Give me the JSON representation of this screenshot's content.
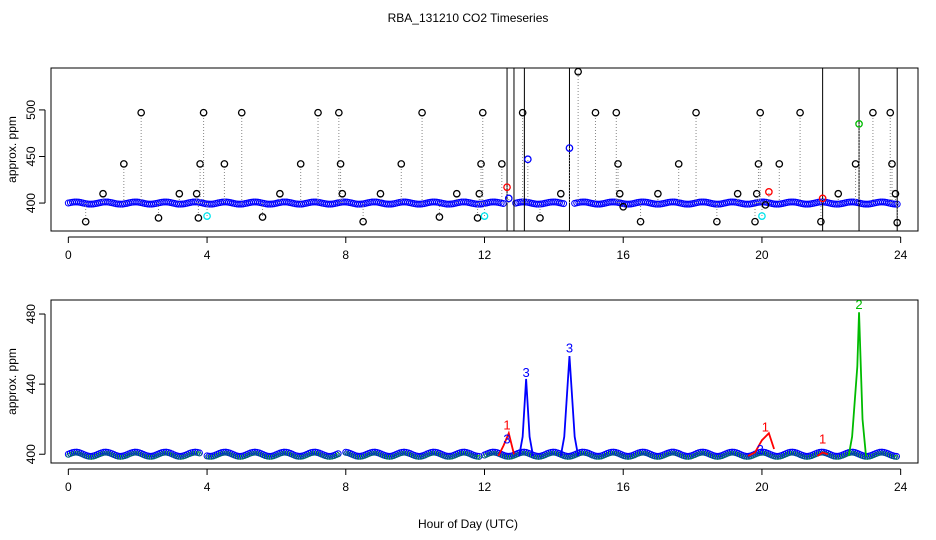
{
  "figure": {
    "title": "RBA_131210  CO2 Timeseries",
    "xlabel": "Hour of Day (UTC)"
  },
  "colors": {
    "black": "#000000",
    "blue": "#0000ff",
    "cyan": "#00e5ee",
    "red": "#ff0000",
    "green": "#00bb00",
    "grey": "#888888"
  },
  "chart_data": [
    {
      "type": "scatter",
      "panel": "top",
      "ylabel": "approx. ppm",
      "xlim": [
        -0.5,
        24.5
      ],
      "ylim": [
        370,
        545
      ],
      "x_ticks": [
        0,
        4,
        8,
        12,
        16,
        20,
        24
      ],
      "y_ticks": [
        400,
        450,
        500
      ],
      "baseline_segments": [
        [
          0,
          12.6
        ],
        [
          12.9,
          14.3
        ],
        [
          14.6,
          23.9
        ]
      ],
      "baseline_value": 400,
      "spike_points": [
        {
          "x": 0.5,
          "y": 380,
          "c": "black"
        },
        {
          "x": 1.0,
          "y": 410,
          "c": "black"
        },
        {
          "x": 1.6,
          "y": 442,
          "c": "black"
        },
        {
          "x": 2.1,
          "y": 497,
          "c": "black"
        },
        {
          "x": 2.6,
          "y": 384,
          "c": "black"
        },
        {
          "x": 3.2,
          "y": 410,
          "c": "black"
        },
        {
          "x": 3.7,
          "y": 410,
          "c": "black"
        },
        {
          "x": 3.75,
          "y": 384,
          "c": "black"
        },
        {
          "x": 3.8,
          "y": 442,
          "c": "black"
        },
        {
          "x": 3.9,
          "y": 497,
          "c": "black"
        },
        {
          "x": 4.0,
          "y": 386,
          "c": "cyan"
        },
        {
          "x": 4.5,
          "y": 442,
          "c": "black"
        },
        {
          "x": 5.0,
          "y": 497,
          "c": "black"
        },
        {
          "x": 5.6,
          "y": 385,
          "c": "black"
        },
        {
          "x": 6.1,
          "y": 410,
          "c": "black"
        },
        {
          "x": 6.7,
          "y": 442,
          "c": "black"
        },
        {
          "x": 7.2,
          "y": 497,
          "c": "black"
        },
        {
          "x": 7.8,
          "y": 497,
          "c": "black"
        },
        {
          "x": 7.85,
          "y": 442,
          "c": "black"
        },
        {
          "x": 7.9,
          "y": 410,
          "c": "black"
        },
        {
          "x": 8.5,
          "y": 380,
          "c": "black"
        },
        {
          "x": 9.0,
          "y": 410,
          "c": "black"
        },
        {
          "x": 9.6,
          "y": 442,
          "c": "black"
        },
        {
          "x": 10.2,
          "y": 497,
          "c": "black"
        },
        {
          "x": 10.7,
          "y": 385,
          "c": "black"
        },
        {
          "x": 11.2,
          "y": 410,
          "c": "black"
        },
        {
          "x": 11.8,
          "y": 384,
          "c": "black"
        },
        {
          "x": 11.85,
          "y": 410,
          "c": "black"
        },
        {
          "x": 11.9,
          "y": 442,
          "c": "black"
        },
        {
          "x": 11.95,
          "y": 497,
          "c": "black"
        },
        {
          "x": 12.0,
          "y": 386,
          "c": "cyan"
        },
        {
          "x": 12.5,
          "y": 442,
          "c": "black"
        },
        {
          "x": 12.65,
          "y": 417,
          "c": "red"
        },
        {
          "x": 12.7,
          "y": 405,
          "c": "blue"
        },
        {
          "x": 13.1,
          "y": 497,
          "c": "black"
        },
        {
          "x": 13.25,
          "y": 447,
          "c": "blue"
        },
        {
          "x": 13.6,
          "y": 384,
          "c": "black"
        },
        {
          "x": 14.2,
          "y": 410,
          "c": "black"
        },
        {
          "x": 14.45,
          "y": 459,
          "c": "blue"
        },
        {
          "x": 14.7,
          "y": 541,
          "c": "black"
        },
        {
          "x": 15.2,
          "y": 497,
          "c": "black"
        },
        {
          "x": 15.8,
          "y": 497,
          "c": "black"
        },
        {
          "x": 15.85,
          "y": 442,
          "c": "black"
        },
        {
          "x": 15.9,
          "y": 410,
          "c": "black"
        },
        {
          "x": 16.0,
          "y": 396,
          "c": "black"
        },
        {
          "x": 16.5,
          "y": 380,
          "c": "black"
        },
        {
          "x": 17.0,
          "y": 410,
          "c": "black"
        },
        {
          "x": 17.6,
          "y": 442,
          "c": "black"
        },
        {
          "x": 18.1,
          "y": 497,
          "c": "black"
        },
        {
          "x": 18.7,
          "y": 380,
          "c": "black"
        },
        {
          "x": 19.3,
          "y": 410,
          "c": "black"
        },
        {
          "x": 19.8,
          "y": 380,
          "c": "black"
        },
        {
          "x": 19.85,
          "y": 410,
          "c": "black"
        },
        {
          "x": 19.9,
          "y": 442,
          "c": "black"
        },
        {
          "x": 19.95,
          "y": 497,
          "c": "black"
        },
        {
          "x": 20.0,
          "y": 386,
          "c": "cyan"
        },
        {
          "x": 20.1,
          "y": 398,
          "c": "black"
        },
        {
          "x": 20.2,
          "y": 412,
          "c": "red"
        },
        {
          "x": 20.5,
          "y": 442,
          "c": "black"
        },
        {
          "x": 21.1,
          "y": 497,
          "c": "black"
        },
        {
          "x": 21.7,
          "y": 380,
          "c": "black"
        },
        {
          "x": 21.75,
          "y": 405,
          "c": "red"
        },
        {
          "x": 22.2,
          "y": 410,
          "c": "black"
        },
        {
          "x": 22.7,
          "y": 442,
          "c": "black"
        },
        {
          "x": 22.8,
          "y": 485,
          "c": "green"
        },
        {
          "x": 23.2,
          "y": 497,
          "c": "black"
        },
        {
          "x": 23.7,
          "y": 497,
          "c": "black"
        },
        {
          "x": 23.75,
          "y": 442,
          "c": "black"
        },
        {
          "x": 23.85,
          "y": 410,
          "c": "black"
        },
        {
          "x": 23.9,
          "y": 379,
          "c": "black"
        }
      ],
      "vertical_lines": [
        12.65,
        12.85,
        13.15,
        14.45,
        21.75,
        22.8,
        23.9
      ]
    },
    {
      "type": "line",
      "panel": "bottom",
      "ylabel": "approx. ppm",
      "xlim": [
        -0.5,
        24.5
      ],
      "ylim": [
        395,
        488
      ],
      "x_ticks": [
        0,
        4,
        8,
        12,
        16,
        20,
        24
      ],
      "y_ticks": [
        400,
        440,
        480
      ],
      "baseline_segments": [
        [
          0,
          3.8
        ],
        [
          4.0,
          7.8
        ],
        [
          8.0,
          11.9
        ],
        [
          12.0,
          23.9
        ]
      ],
      "series": [
        {
          "c": "blue",
          "x": [
            13.0,
            13.1,
            13.2,
            13.3,
            13.4
          ],
          "y": [
            399,
            410,
            443,
            410,
            399
          ]
        },
        {
          "c": "blue",
          "x": [
            14.2,
            14.3,
            14.45,
            14.6,
            14.7
          ],
          "y": [
            399,
            410,
            456,
            410,
            399
          ]
        },
        {
          "c": "green",
          "x": [
            22.5,
            22.6,
            22.75,
            22.8,
            22.9,
            23.0
          ],
          "y": [
            399,
            410,
            450,
            481,
            420,
            399
          ]
        },
        {
          "c": "red",
          "x": [
            12.4,
            12.55,
            12.7,
            12.85
          ],
          "y": [
            399,
            405,
            412,
            400
          ]
        },
        {
          "c": "red",
          "x": [
            19.6,
            19.8,
            20.0,
            20.2,
            20.35
          ],
          "y": [
            399,
            401,
            408,
            412,
            403
          ]
        },
        {
          "c": "red",
          "x": [
            21.6,
            21.75,
            21.9
          ],
          "y": [
            399,
            401,
            400
          ]
        }
      ],
      "point_labels": [
        {
          "x": 12.65,
          "y": 414,
          "text": "1",
          "c": "red"
        },
        {
          "x": 12.65,
          "y": 406,
          "text": "3",
          "c": "blue"
        },
        {
          "x": 13.2,
          "y": 444,
          "text": "3",
          "c": "blue"
        },
        {
          "x": 14.45,
          "y": 458,
          "text": "3",
          "c": "blue"
        },
        {
          "x": 20.1,
          "y": 413,
          "text": "1",
          "c": "red"
        },
        {
          "x": 19.95,
          "y": 400,
          "text": "3",
          "c": "blue"
        },
        {
          "x": 21.75,
          "y": 406,
          "text": "1",
          "c": "red"
        },
        {
          "x": 22.8,
          "y": 483,
          "text": "2",
          "c": "green"
        }
      ]
    }
  ]
}
